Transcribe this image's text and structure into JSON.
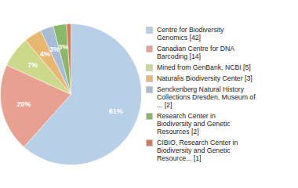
{
  "chart_data": {
    "type": "pie",
    "categories": [
      "Centre for Biodiversity\nGenomics [42]",
      "Canadian Centre for DNA\nBarcoding [14]",
      "Mined from GenBank, NCBI [5]",
      "Naturalis Biodiversity Center [3]",
      "Senckenberg Natural History\nCollections Dresden, Museum of\n... [2]",
      "Research Center in\nBiodiversity and Genetic\nResources [2]",
      "CIBIO, Research Center in\nBiodiversity and Genetic\nResource... [1]"
    ],
    "values": [
      61,
      20,
      7,
      4,
      3,
      3,
      1
    ],
    "value_labels": [
      "61%",
      "20%",
      "7%",
      "4%",
      "3%",
      "3%",
      null
    ],
    "colors": [
      "#b8cfe8",
      "#e8a090",
      "#ccd98a",
      "#e8b870",
      "#a8bcd8",
      "#88b868",
      "#d87858"
    ],
    "data_labels": true,
    "legend": "right"
  }
}
